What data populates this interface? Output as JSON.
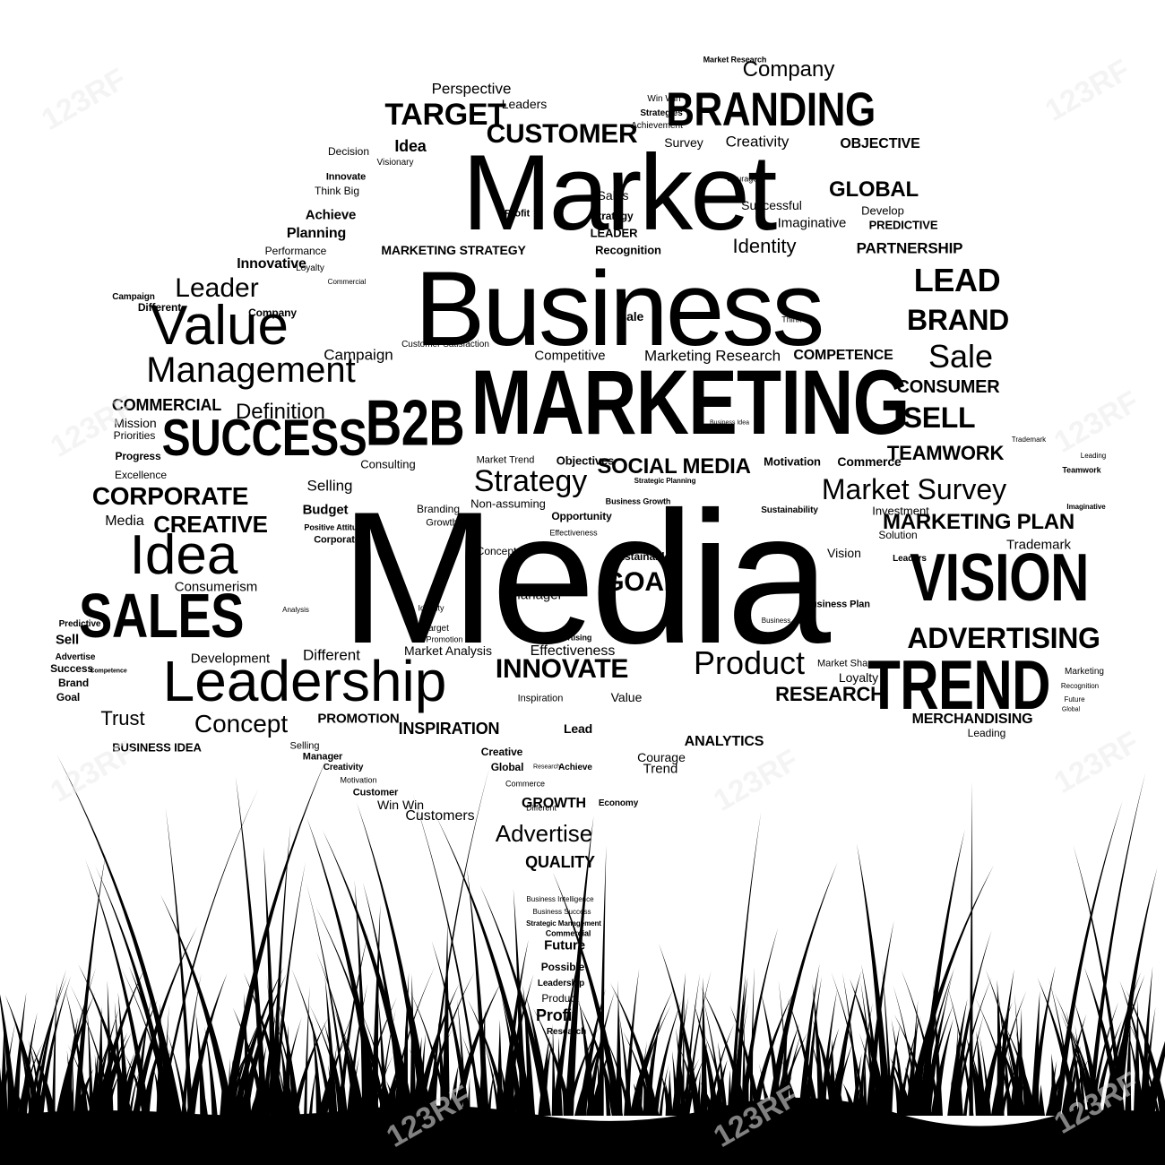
{
  "colors": {
    "ink": "#000000",
    "background": "#ffffff",
    "watermark": "#e6e6e6"
  },
  "watermark_text": "123RF",
  "words": [
    "Media",
    "Business",
    "Market",
    "MARKETING",
    "Leadership",
    "Value",
    "Management",
    "SUCCESS",
    "B2B",
    "Idea",
    "SALES",
    "VISION",
    "TREND",
    "BRANDING",
    "Strategy",
    "Market Survey",
    "Product",
    "ADVERTISING",
    "Company",
    "CUSTOMER",
    "Advertise",
    "INNOVATE",
    "SOCIAL MEDIA",
    "CORPORATE",
    "CREATIVE",
    "Concept",
    "Leader",
    "Sale",
    "BRAND",
    "LEAD",
    "SELL",
    "GOAL",
    "MARKETING PLAN",
    "RESEARCH",
    "TARGET",
    "Definition",
    "Perspective",
    "Identity",
    "GLOBAL",
    "CONSUMER",
    "TEAMWORK",
    "Creativity",
    "OBJECTIVE",
    "QUALITY",
    "Competitive",
    "Marketing Research",
    "COMPETENCE",
    "COMMERCIAL",
    "Campaign",
    "Customers",
    "INSPIRATION",
    "PROMOTION",
    "MERCHANDISING",
    "ANALYTICS",
    "Trust",
    "BUSINESS IDEA",
    "Consumerism",
    "Different",
    "Market Analysis",
    "Effectiveness",
    "Trend",
    "Courage",
    "Manager",
    "Selling",
    "Budget",
    "GROWTH",
    "Win Win",
    "LEADER",
    "Successful",
    "Achievement",
    "Recognition",
    "MARKETING STRATEGY",
    "PARTNERSHIP",
    "Imaginative",
    "Loyalty",
    "Investment",
    "Trademark",
    "Vision",
    "Sustainability",
    "Commerce",
    "Motivation",
    "Objectives",
    "Consulting",
    "Branding",
    "Non-assuming",
    "Opportunity",
    "Growth",
    "PREDICTIVE",
    "Develop",
    "Planning",
    "Achieve",
    "Innovative",
    "Performance",
    "Leaders",
    "Strategies",
    "Idea",
    "Decision",
    "Visionary",
    "Innovate",
    "Think Big",
    "Survey",
    "Profit",
    "Sales",
    "Mission",
    "Priorities",
    "Progress",
    "Excellence",
    "Media",
    "Commercial",
    "Different",
    "Company",
    "Sale",
    "Customer Satisfaction",
    "Market Trend",
    "Solution",
    "Leaders",
    "Business Plan",
    "Inspiration",
    "Economy",
    "Future",
    "Possible",
    "Profit",
    "Research",
    "Advertising",
    "Commerce",
    "Global",
    "Achieve",
    "Creative",
    "Lead",
    "Sustainable",
    "Marketing",
    "Market Share",
    "Leading",
    "Business Growth",
    "Strategic Planning",
    "Business Intelligence",
    "Business Success",
    "Strategic Management",
    "Commercial",
    "Leadership",
    "Product",
    "Selling",
    "Predictive",
    "Sell",
    "Success",
    "Brand",
    "Goal",
    "Advertise",
    "Competence",
    "Development",
    "Motivation",
    "Creativity",
    "Customer",
    "Manager",
    "Business",
    "Analysis",
    "Target",
    "Promotion",
    "Effectiveness",
    "Value",
    "Identity",
    "Strategy",
    "Positive Attitude",
    "Corporate",
    "Different",
    "Campaign",
    "Loyalty",
    "Concept",
    "Recognition",
    "Win Win",
    "Courage",
    "Think Big",
    "Business Idea",
    "Market Research",
    "Teamwork",
    "Imaginative",
    "Trademark",
    "Future",
    "Global",
    "Leading",
    "Research"
  ]
}
